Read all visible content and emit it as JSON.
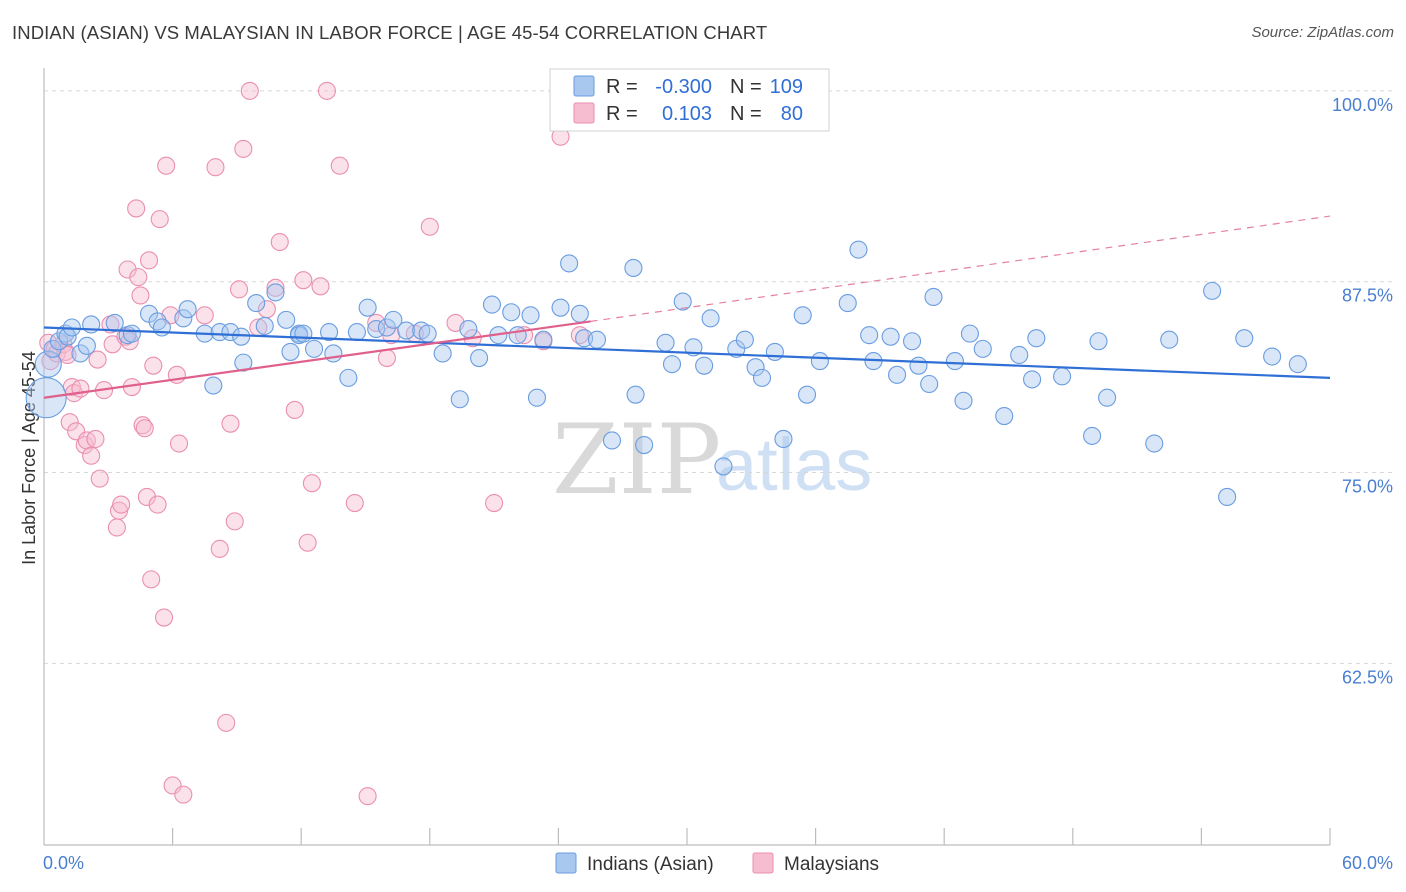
{
  "title": "INDIAN (ASIAN) VS MALAYSIAN IN LABOR FORCE | AGE 45-54 CORRELATION CHART",
  "source": "Source: ZipAtlas.com",
  "watermark": {
    "zip": "ZIP",
    "atlas": "atlas"
  },
  "colors": {
    "blue_fill": "#a9c8f0",
    "blue_stroke": "#6a9de0",
    "blue_line": "#2f6fd6",
    "pink_fill": "#f6bcd0",
    "pink_stroke": "#ea8fb0",
    "pink_line": "#e0608c",
    "grid": "#d8d8d8",
    "tick_text": "#4a7fd0"
  },
  "legend": {
    "rows": [
      {
        "r_label": "R =",
        "r_value": "-0.300",
        "n_label": "N =",
        "n_value": "109"
      },
      {
        "r_label": "R =",
        "r_value": "0.103",
        "n_label": "N =",
        "n_value": "80"
      }
    ]
  },
  "bottom_legend": [
    "Indians (Asian)",
    "Malaysians"
  ],
  "chart_data": {
    "type": "scatter",
    "title": "INDIAN (ASIAN) VS MALAYSIAN IN LABOR FORCE | AGE 45-54 CORRELATION CHART",
    "xlabel": "",
    "ylabel": "In Labor Force | Age 45-54",
    "xlim": [
      0,
      60
    ],
    "ylim": [
      50.6,
      101.5
    ],
    "x_tick_labels": [
      "0.0%",
      "60.0%"
    ],
    "y_ticks": [
      {
        "value": 100,
        "label": "100.0%"
      },
      {
        "value": 87.5,
        "label": "87.5%"
      },
      {
        "value": 75,
        "label": "75.0%"
      },
      {
        "value": 62.5,
        "label": "62.5%"
      }
    ],
    "series": [
      {
        "name": "Indians (Asian)",
        "R": -0.3,
        "N": 109,
        "trend": {
          "x0": 0,
          "y0": 84.5,
          "x1": 60,
          "y1": 81.2
        },
        "points": [
          [
            0.1,
            79.9
          ],
          [
            0.2,
            82.1
          ],
          [
            0.4,
            83.1
          ],
          [
            0.7,
            83.6
          ],
          [
            1.0,
            84.1
          ],
          [
            1.1,
            83.9
          ],
          [
            1.3,
            84.5
          ],
          [
            1.7,
            82.8
          ],
          [
            2.0,
            83.3
          ],
          [
            2.2,
            84.7
          ],
          [
            3.3,
            84.8
          ],
          [
            3.9,
            84.0
          ],
          [
            4.1,
            84.1
          ],
          [
            4.9,
            85.4
          ],
          [
            5.3,
            84.9
          ],
          [
            5.5,
            84.5
          ],
          [
            6.5,
            85.1
          ],
          [
            6.7,
            85.7
          ],
          [
            7.5,
            84.1
          ],
          [
            7.9,
            80.7
          ],
          [
            8.2,
            84.2
          ],
          [
            8.7,
            84.2
          ],
          [
            9.2,
            83.9
          ],
          [
            9.3,
            82.2
          ],
          [
            9.9,
            86.1
          ],
          [
            10.3,
            84.6
          ],
          [
            10.8,
            86.8
          ],
          [
            11.3,
            85.0
          ],
          [
            11.5,
            82.9
          ],
          [
            11.9,
            84.1
          ],
          [
            11.9,
            84.0
          ],
          [
            12.1,
            84.1
          ],
          [
            12.6,
            83.1
          ],
          [
            13.3,
            84.2
          ],
          [
            13.5,
            82.8
          ],
          [
            14.2,
            81.2
          ],
          [
            14.6,
            84.2
          ],
          [
            15.1,
            85.8
          ],
          [
            15.5,
            84.4
          ],
          [
            16.0,
            84.5
          ],
          [
            16.3,
            85.0
          ],
          [
            16.9,
            84.3
          ],
          [
            17.6,
            84.3
          ],
          [
            17.9,
            84.1
          ],
          [
            18.6,
            82.8
          ],
          [
            19.4,
            79.8
          ],
          [
            19.8,
            84.4
          ],
          [
            20.3,
            82.5
          ],
          [
            20.9,
            86.0
          ],
          [
            21.2,
            84.0
          ],
          [
            21.8,
            85.5
          ],
          [
            22.1,
            84.0
          ],
          [
            22.7,
            85.3
          ],
          [
            23.0,
            79.9
          ],
          [
            23.3,
            83.7
          ],
          [
            24.1,
            85.8
          ],
          [
            24.5,
            88.7
          ],
          [
            25.0,
            85.4
          ],
          [
            25.2,
            83.8
          ],
          [
            25.8,
            83.7
          ],
          [
            26.5,
            77.1
          ],
          [
            27.5,
            88.4
          ],
          [
            27.6,
            80.1
          ],
          [
            28.0,
            76.8
          ],
          [
            29.0,
            83.5
          ],
          [
            29.3,
            82.1
          ],
          [
            29.8,
            86.2
          ],
          [
            30.3,
            83.2
          ],
          [
            30.8,
            82.0
          ],
          [
            31.1,
            85.1
          ],
          [
            31.7,
            75.4
          ],
          [
            32.3,
            83.1
          ],
          [
            32.7,
            83.7
          ],
          [
            33.2,
            81.9
          ],
          [
            33.5,
            81.2
          ],
          [
            34.1,
            82.9
          ],
          [
            34.5,
            77.2
          ],
          [
            35.4,
            85.3
          ],
          [
            35.6,
            80.1
          ],
          [
            36.2,
            82.3
          ],
          [
            37.5,
            86.1
          ],
          [
            38.0,
            89.6
          ],
          [
            38.5,
            84.0
          ],
          [
            38.7,
            82.3
          ],
          [
            39.5,
            83.9
          ],
          [
            39.8,
            81.4
          ],
          [
            40.5,
            83.6
          ],
          [
            40.8,
            82.0
          ],
          [
            41.3,
            80.8
          ],
          [
            41.5,
            86.5
          ],
          [
            42.5,
            82.3
          ],
          [
            42.9,
            79.7
          ],
          [
            43.2,
            84.1
          ],
          [
            43.8,
            83.1
          ],
          [
            44.8,
            78.7
          ],
          [
            45.5,
            82.7
          ],
          [
            46.1,
            81.1
          ],
          [
            46.3,
            83.8
          ],
          [
            47.5,
            81.3
          ],
          [
            48.9,
            77.4
          ],
          [
            49.2,
            83.6
          ],
          [
            49.6,
            79.9
          ],
          [
            51.8,
            76.9
          ],
          [
            52.5,
            83.7
          ],
          [
            54.5,
            86.9
          ],
          [
            55.2,
            73.4
          ],
          [
            56.0,
            83.8
          ],
          [
            57.3,
            82.6
          ],
          [
            58.5,
            82.1
          ]
        ]
      },
      {
        "name": "Malaysians",
        "R": 0.103,
        "N": 80,
        "trend": {
          "x0": 0,
          "y0": 79.9,
          "x1": 25.5,
          "y1": 84.9
        },
        "trend_extension": {
          "x0": 25.5,
          "y0": 84.9,
          "x1": 60,
          "y1": 91.8
        },
        "points": [
          [
            0.2,
            83.5
          ],
          [
            0.3,
            82.3
          ],
          [
            0.5,
            83.1
          ],
          [
            0.6,
            82.8
          ],
          [
            0.9,
            83.4
          ],
          [
            1.0,
            82.9
          ],
          [
            1.1,
            82.7
          ],
          [
            1.2,
            78.3
          ],
          [
            1.3,
            80.6
          ],
          [
            1.4,
            80.2
          ],
          [
            1.5,
            77.7
          ],
          [
            1.7,
            80.5
          ],
          [
            1.9,
            76.8
          ],
          [
            2.0,
            77.1
          ],
          [
            2.2,
            76.1
          ],
          [
            2.4,
            77.2
          ],
          [
            2.5,
            82.4
          ],
          [
            2.6,
            74.6
          ],
          [
            2.8,
            80.4
          ],
          [
            3.1,
            84.7
          ],
          [
            3.2,
            83.4
          ],
          [
            3.4,
            71.4
          ],
          [
            3.5,
            72.5
          ],
          [
            3.6,
            72.9
          ],
          [
            3.8,
            83.9
          ],
          [
            3.9,
            88.3
          ],
          [
            4.0,
            83.6
          ],
          [
            4.1,
            80.6
          ],
          [
            4.3,
            92.3
          ],
          [
            4.4,
            87.8
          ],
          [
            4.5,
            86.6
          ],
          [
            4.6,
            78.1
          ],
          [
            4.7,
            77.9
          ],
          [
            4.8,
            73.4
          ],
          [
            4.9,
            88.9
          ],
          [
            5.0,
            68.0
          ],
          [
            5.1,
            82.0
          ],
          [
            5.3,
            72.9
          ],
          [
            5.4,
            91.6
          ],
          [
            5.6,
            65.5
          ],
          [
            5.7,
            95.1
          ],
          [
            5.9,
            85.3
          ],
          [
            6.0,
            54.5
          ],
          [
            6.2,
            81.4
          ],
          [
            6.3,
            76.9
          ],
          [
            6.5,
            53.9
          ],
          [
            7.5,
            85.3
          ],
          [
            8.0,
            95.0
          ],
          [
            8.2,
            70.0
          ],
          [
            8.5,
            58.6
          ],
          [
            8.7,
            78.2
          ],
          [
            8.9,
            71.8
          ],
          [
            9.1,
            87.0
          ],
          [
            9.3,
            96.2
          ],
          [
            9.6,
            100.0
          ],
          [
            10.0,
            84.5
          ],
          [
            10.4,
            85.7
          ],
          [
            10.8,
            87.1
          ],
          [
            11.0,
            90.1
          ],
          [
            11.7,
            79.1
          ],
          [
            12.1,
            87.6
          ],
          [
            12.3,
            70.4
          ],
          [
            12.5,
            74.3
          ],
          [
            12.9,
            87.2
          ],
          [
            13.2,
            100.0
          ],
          [
            13.8,
            95.1
          ],
          [
            14.5,
            73.0
          ],
          [
            15.1,
            53.8
          ],
          [
            15.5,
            84.8
          ],
          [
            16.0,
            82.5
          ],
          [
            16.2,
            84.0
          ],
          [
            17.3,
            84.1
          ],
          [
            18.0,
            91.1
          ],
          [
            19.2,
            84.8
          ],
          [
            20.0,
            83.8
          ],
          [
            21.0,
            73.0
          ],
          [
            22.4,
            84.0
          ],
          [
            23.3,
            83.6
          ],
          [
            24.1,
            97.0
          ],
          [
            25.0,
            84.0
          ]
        ]
      }
    ]
  }
}
